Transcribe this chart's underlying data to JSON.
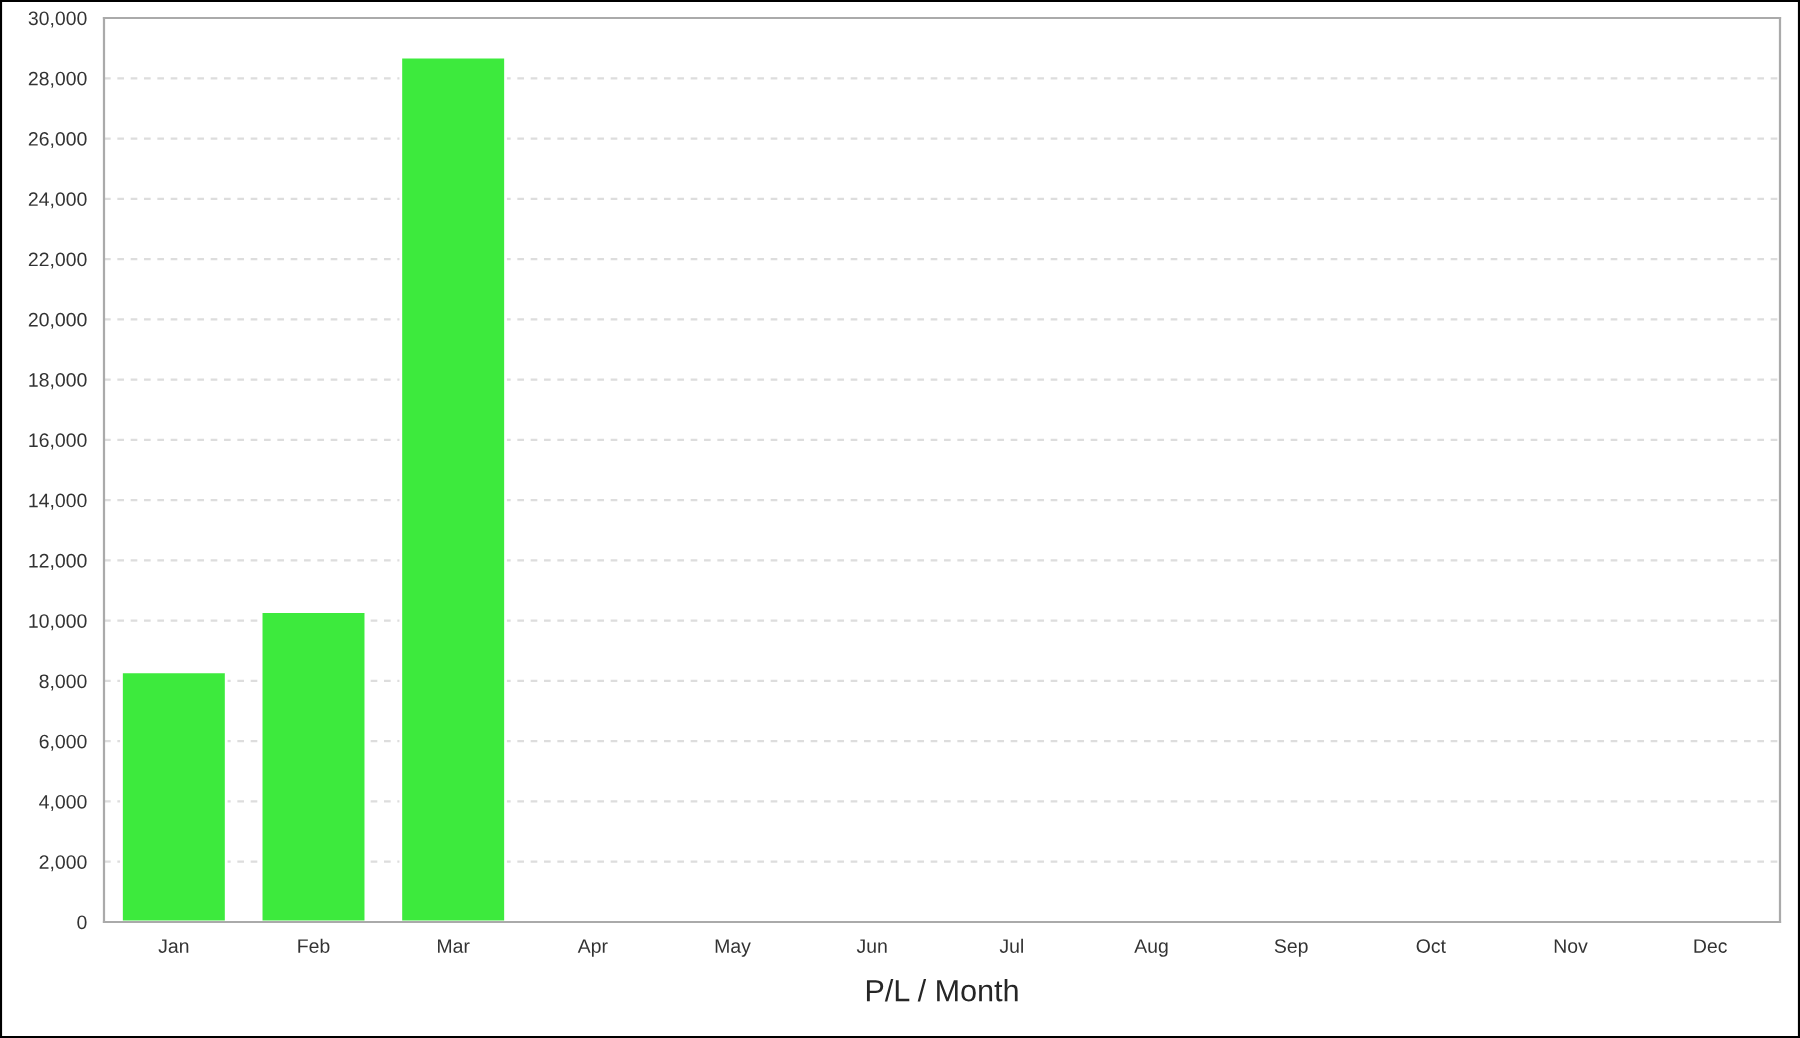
{
  "chart_data": {
    "type": "bar",
    "xlabel": "P/L / Month",
    "categories": [
      "Jan",
      "Feb",
      "Mar",
      "Apr",
      "May",
      "Jun",
      "Jul",
      "Aug",
      "Sep",
      "Oct",
      "Nov",
      "Dec"
    ],
    "series": [
      {
        "color": "#3dea3d",
        "values": [
          8300,
          10300,
          28700,
          null,
          null,
          null,
          null,
          null,
          null,
          null,
          null,
          null
        ]
      }
    ],
    "ylim": [
      0,
      30000
    ],
    "yticks": [
      {
        "value": 0,
        "label": "0"
      },
      {
        "value": 2000,
        "label": "2,000"
      },
      {
        "value": 4000,
        "label": "4,000"
      },
      {
        "value": 6000,
        "label": "6,000"
      },
      {
        "value": 8000,
        "label": "8,000"
      },
      {
        "value": 10000,
        "label": "10,000"
      },
      {
        "value": 12000,
        "label": "12,000"
      },
      {
        "value": 14000,
        "label": "14,000"
      },
      {
        "value": 16000,
        "label": "16,000"
      },
      {
        "value": 18000,
        "label": "18,000"
      },
      {
        "value": 20000,
        "label": "20,000"
      },
      {
        "value": 22000,
        "label": "22,000"
      },
      {
        "value": 24000,
        "label": "24,000"
      },
      {
        "value": 26000,
        "label": "26,000"
      },
      {
        "value": 28000,
        "label": "28,000"
      },
      {
        "value": 30000,
        "label": "30,000"
      }
    ],
    "grid": "y",
    "legend": false
  }
}
